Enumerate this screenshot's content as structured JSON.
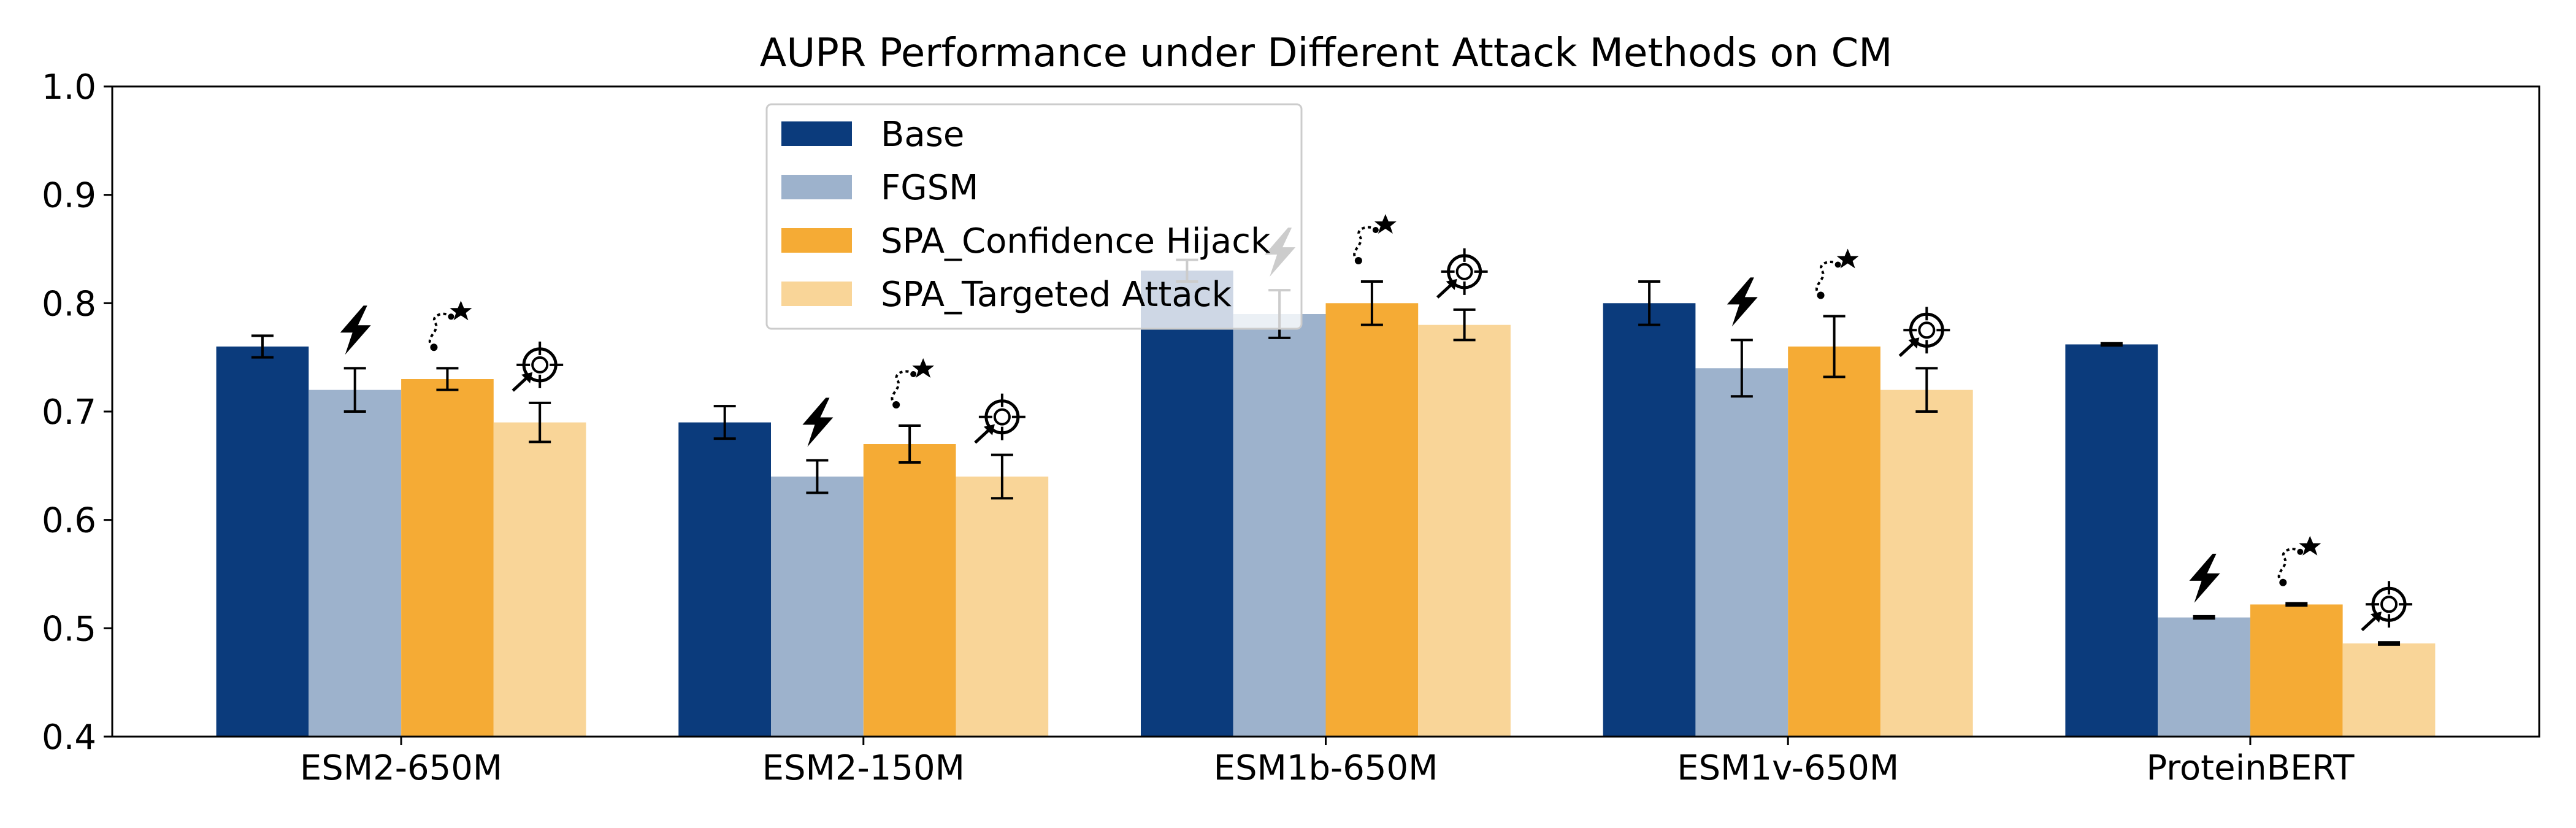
{
  "chart_data": {
    "type": "bar",
    "title": "AUPR Performance under Different Attack Methods on CM",
    "xlabel": "",
    "ylabel": "",
    "ylim": [
      0.4,
      1.0
    ],
    "yticks": [
      "0.4",
      "0.5",
      "0.6",
      "0.7",
      "0.8",
      "0.9",
      "1.0"
    ],
    "categories": [
      "ESM2-650M",
      "ESM2-150M",
      "ESM1b-650M",
      "ESM1v-650M",
      "ProteinBERT"
    ],
    "legend_position": "upper-center",
    "series": [
      {
        "name": "Base",
        "color": "#0b3b7c",
        "icon": "none",
        "values": [
          0.76,
          0.69,
          0.83,
          0.8,
          0.762
        ],
        "errors": [
          0.01,
          0.015,
          0.01,
          0.02,
          0.001
        ]
      },
      {
        "name": "FGSM",
        "color": "#9db2cc",
        "icon": "lightning-icon",
        "values": [
          0.72,
          0.64,
          0.79,
          0.74,
          0.51
        ],
        "errors": [
          0.02,
          0.015,
          0.022,
          0.026,
          0.001
        ]
      },
      {
        "name": "SPA_Confidence Hijack",
        "color": "#f5ab35",
        "icon": "path-star-icon",
        "values": [
          0.73,
          0.67,
          0.8,
          0.76,
          0.522
        ],
        "errors": [
          0.01,
          0.017,
          0.02,
          0.028,
          0.001
        ]
      },
      {
        "name": "SPA_Targeted Attack",
        "color": "#f9d598",
        "icon": "target-icon",
        "values": [
          0.69,
          0.64,
          0.78,
          0.72,
          0.486
        ],
        "errors": [
          0.018,
          0.02,
          0.014,
          0.02,
          0.001
        ]
      }
    ]
  }
}
